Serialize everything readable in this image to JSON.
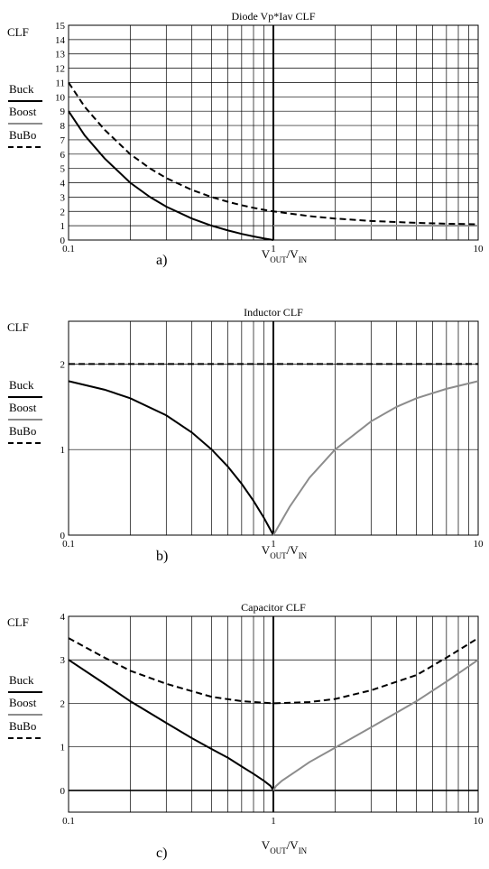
{
  "chart_data": [
    {
      "type": "line",
      "title": "Diode Vp*Iav CLF",
      "ylabel": "CLF",
      "xlabel": {
        "main": "V",
        "sub1": "OUT",
        "sep": "/V",
        "sub2": "IN"
      },
      "panel_label": "a)",
      "xscale": "log",
      "xlim": [
        0.1,
        10
      ],
      "ylim": [
        0,
        15
      ],
      "x_tick_labels": [
        {
          "v": 0.1,
          "t": "0.1"
        },
        {
          "v": 1,
          "t": "1"
        },
        {
          "v": 10,
          "t": "10"
        }
      ],
      "y_ticks": [
        0,
        1,
        2,
        3,
        4,
        5,
        6,
        7,
        8,
        9,
        10,
        11,
        12,
        13,
        14,
        15
      ],
      "grid": true,
      "legend": {
        "placement": "left",
        "entries": [
          {
            "name": "Buck",
            "color": "#000000",
            "dash": "solid"
          },
          {
            "name": "Boost",
            "color": "#8c8c8c",
            "dash": "solid"
          },
          {
            "name": "BuBo",
            "color": "#000000",
            "dash": "dashed"
          }
        ]
      },
      "series": [
        {
          "name": "Buck",
          "color": "#000000",
          "dash": "solid",
          "points": [
            [
              0.1,
              9
            ],
            [
              0.12,
              7.3
            ],
            [
              0.15,
              5.7
            ],
            [
              0.2,
              4
            ],
            [
              0.25,
              3
            ],
            [
              0.3,
              2.33
            ],
            [
              0.4,
              1.5
            ],
            [
              0.5,
              1
            ],
            [
              0.6,
              0.67
            ],
            [
              0.7,
              0.43
            ],
            [
              0.8,
              0.25
            ],
            [
              0.9,
              0.11
            ],
            [
              1,
              0
            ]
          ]
        },
        {
          "name": "Boost",
          "color": "#8c8c8c",
          "dash": "solid",
          "points": [
            [
              1,
              1
            ],
            [
              2,
              1
            ],
            [
              5,
              1
            ],
            [
              10,
              1
            ]
          ]
        },
        {
          "name": "BuBo",
          "color": "#000000",
          "dash": "dashed",
          "points": [
            [
              0.1,
              11
            ],
            [
              0.12,
              9.3
            ],
            [
              0.15,
              7.7
            ],
            [
              0.2,
              6
            ],
            [
              0.25,
              5
            ],
            [
              0.3,
              4.33
            ],
            [
              0.4,
              3.5
            ],
            [
              0.5,
              3
            ],
            [
              0.6,
              2.67
            ],
            [
              0.7,
              2.43
            ],
            [
              0.8,
              2.25
            ],
            [
              0.9,
              2.11
            ],
            [
              1,
              2
            ],
            [
              1.5,
              1.67
            ],
            [
              2,
              1.5
            ],
            [
              3,
              1.33
            ],
            [
              5,
              1.2
            ],
            [
              7,
              1.14
            ],
            [
              10,
              1.1
            ]
          ]
        }
      ]
    },
    {
      "type": "line",
      "title": "Inductor CLF",
      "ylabel": "CLF",
      "xlabel": {
        "main": "V",
        "sub1": "OUT",
        "sep": "/V",
        "sub2": "IN"
      },
      "panel_label": "b)",
      "xscale": "log",
      "xlim": [
        0.1,
        10
      ],
      "ylim": [
        0,
        2.5
      ],
      "x_tick_labels": [
        {
          "v": 0.1,
          "t": "0.1"
        },
        {
          "v": 1,
          "t": "1"
        },
        {
          "v": 10,
          "t": "10"
        }
      ],
      "y_ticks": [
        0,
        1,
        2
      ],
      "grid": true,
      "legend": {
        "placement": "left",
        "entries": [
          {
            "name": "Buck",
            "color": "#000000",
            "dash": "solid"
          },
          {
            "name": "Boost",
            "color": "#8c8c8c",
            "dash": "solid"
          },
          {
            "name": "BuBo",
            "color": "#000000",
            "dash": "dashed"
          }
        ]
      },
      "series": [
        {
          "name": "Buck",
          "color": "#000000",
          "dash": "solid",
          "points": [
            [
              0.1,
              1.8
            ],
            [
              0.15,
              1.7
            ],
            [
              0.2,
              1.6
            ],
            [
              0.3,
              1.4
            ],
            [
              0.4,
              1.2
            ],
            [
              0.5,
              1
            ],
            [
              0.6,
              0.8
            ],
            [
              0.7,
              0.6
            ],
            [
              0.8,
              0.4
            ],
            [
              0.9,
              0.2
            ],
            [
              1,
              0
            ]
          ]
        },
        {
          "name": "Boost",
          "color": "#8c8c8c",
          "dash": "solid",
          "points": [
            [
              1,
              0
            ],
            [
              1.2,
              0.33
            ],
            [
              1.5,
              0.67
            ],
            [
              2,
              1
            ],
            [
              3,
              1.33
            ],
            [
              4,
              1.5
            ],
            [
              5,
              1.6
            ],
            [
              7,
              1.71
            ],
            [
              10,
              1.8
            ]
          ]
        },
        {
          "name": "BuBo",
          "color": "#000000",
          "dash": "dashed",
          "points": [
            [
              0.1,
              2
            ],
            [
              10,
              2
            ]
          ]
        }
      ]
    },
    {
      "type": "line",
      "title": "Capacitor CLF",
      "ylabel": "CLF",
      "xlabel": {
        "main": "V",
        "sub1": "OUT",
        "sep": "/V",
        "sub2": "IN"
      },
      "panel_label": "c)",
      "xscale": "log",
      "xlim": [
        0.1,
        10
      ],
      "ylim": [
        -0.5,
        4
      ],
      "x_tick_labels": [
        {
          "v": 0.1,
          "t": "0.1"
        },
        {
          "v": 1,
          "t": "1"
        },
        {
          "v": 10,
          "t": "10"
        }
      ],
      "y_ticks": [
        0,
        1,
        2,
        3,
        4
      ],
      "grid": true,
      "legend": {
        "placement": "left",
        "entries": [
          {
            "name": "Buck",
            "color": "#000000",
            "dash": "solid"
          },
          {
            "name": "Boost",
            "color": "#8c8c8c",
            "dash": "solid"
          },
          {
            "name": "BuBo",
            "color": "#000000",
            "dash": "dashed"
          }
        ]
      },
      "series": [
        {
          "name": "Buck",
          "color": "#000000",
          "dash": "solid",
          "points": [
            [
              0.1,
              3
            ],
            [
              0.15,
              2.45
            ],
            [
              0.2,
              2.05
            ],
            [
              0.3,
              1.55
            ],
            [
              0.4,
              1.2
            ],
            [
              0.5,
              0.95
            ],
            [
              0.6,
              0.75
            ],
            [
              0.7,
              0.55
            ],
            [
              0.8,
              0.38
            ],
            [
              0.9,
              0.22
            ],
            [
              0.97,
              0.1
            ],
            [
              1,
              0
            ]
          ]
        },
        {
          "name": "Boost",
          "color": "#8c8c8c",
          "dash": "solid",
          "points": [
            [
              1,
              0
            ],
            [
              1.03,
              0.1
            ],
            [
              1.1,
              0.22
            ],
            [
              1.3,
              0.45
            ],
            [
              1.5,
              0.65
            ],
            [
              2,
              0.98
            ],
            [
              3,
              1.45
            ],
            [
              5,
              2.05
            ],
            [
              7,
              2.5
            ],
            [
              10,
              3
            ]
          ]
        },
        {
          "name": "BuBo",
          "color": "#000000",
          "dash": "dashed",
          "points": [
            [
              0.1,
              3.5
            ],
            [
              0.15,
              3.05
            ],
            [
              0.2,
              2.75
            ],
            [
              0.3,
              2.45
            ],
            [
              0.4,
              2.28
            ],
            [
              0.5,
              2.15
            ],
            [
              0.7,
              2.05
            ],
            [
              1,
              2
            ],
            [
              1.5,
              2.03
            ],
            [
              2,
              2.1
            ],
            [
              3,
              2.3
            ],
            [
              5,
              2.65
            ],
            [
              7,
              3.05
            ],
            [
              10,
              3.5
            ]
          ]
        }
      ]
    }
  ]
}
